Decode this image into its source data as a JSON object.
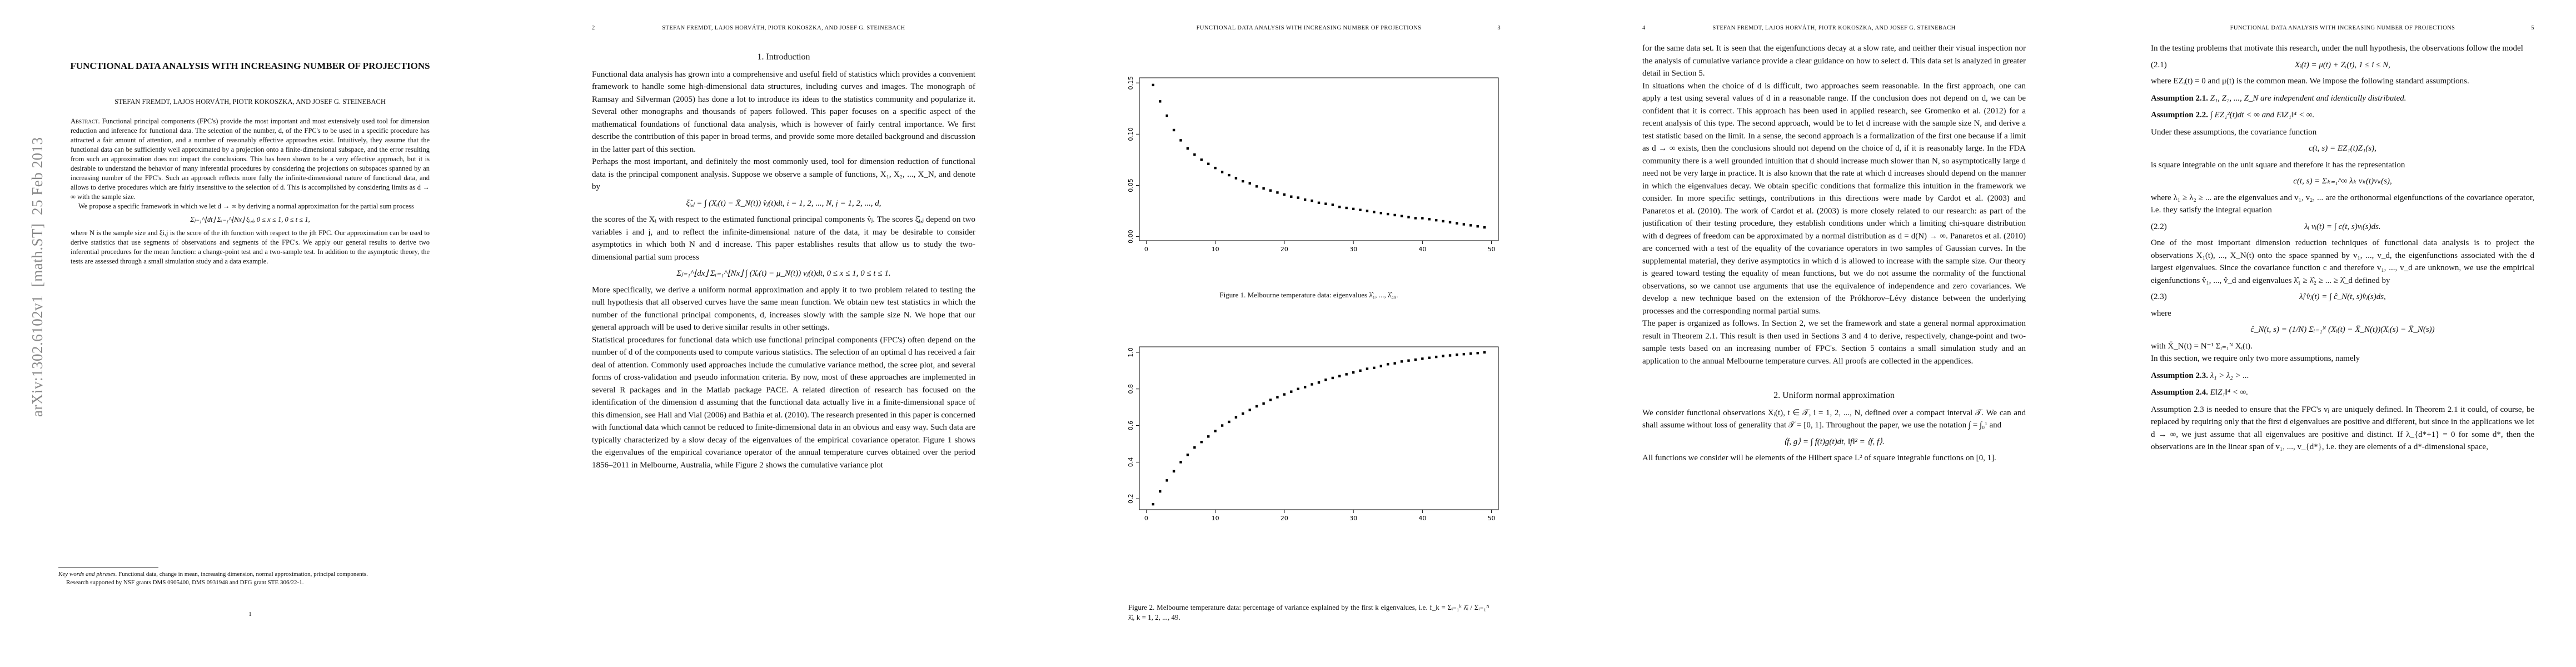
{
  "sidebar": "arXiv:1302.6102v1  [math.ST]  25 Feb 2013",
  "pages": [
    {
      "title": "FUNCTIONAL DATA ANALYSIS WITH INCREASING NUMBER OF PROJECTIONS",
      "authors": "STEFAN FREMDT, LAJOS HORVÁTH, PIOTR KOKOSZKA, AND JOSEF G. STEINEBACH",
      "abstract_label": "Abstract.",
      "abstract": "Functional principal components (FPC's) provide the most important and most extensively used tool for dimension reduction and inference for functional data. The selection of the number, d, of the FPC's to be used in a specific procedure has attracted a fair amount of attention, and a number of reasonably effective approaches exist. Intuitively, they assume that the functional data can be sufficiently well approximated by a projection onto a finite-dimensional subspace, and the error resulting from such an approximation does not impact the conclusions. This has been shown to be a very effective approach, but it is desirable to understand the behavior of many inferential procedures by considering the projections on subspaces spanned by an increasing number of the FPC's. Such an approach reflects more fully the infinite-dimensional nature of functional data, and allows to derive procedures which are fairly insensitive to the selection of d. This is accomplished by considering limits as d → ∞ with the sample size.",
      "abstract_2": "We propose a specific framework in which we let d → ∞ by deriving a normal approximation for the partial sum process",
      "equation": "Σⱼ₌₁^⌊dt⌋ Σᵢ₌₁^⌊Nx⌋ ξᵢ,ⱼ,    0 ≤ x ≤ 1,   0 ≤ t ≤ 1,",
      "abstract_3": "where N is the sample size and ξi,j is the score of the ith function with respect to the jth FPC. Our approximation can be used to derive statistics that use segments of observations and segments of the FPC's. We apply our general results to derive two inferential procedures for the mean function: a change-point test and a two-sample test. In addition to the asymptotic theory, the tests are assessed through a small simulation study and a data example.",
      "keywords_label": "Key words and phrases.",
      "keywords": "Functional data, change in mean, increasing dimension, normal approximation, principal components.",
      "support": "Research supported by NSF grants DMS 0905400, DMS 0931948 and DFG grant STE 306/22-1.",
      "page_number": "1"
    },
    {
      "page_number": "2",
      "running_head": "STEFAN FREMDT, LAJOS HORVÁTH, PIOTR KOKOSZKA, AND JOSEF G. STEINEBACH",
      "heading": "1. Introduction",
      "paragraphs": [
        "Functional data analysis has grown into a comprehensive and useful field of statistics which provides a convenient framework to handle some high-dimensional data structures, including curves and images. The monograph of Ramsay and Silverman (2005) has done a lot to introduce its ideas to the statistics community and popularize it. Several other monographs and thousands of papers followed. This paper focuses on a specific aspect of the mathematical foundations of functional data analysis, which is however of fairly central importance. We first describe the contribution of this paper in broad terms, and provide some more detailed background and discussion in the latter part of this section.",
        "Perhaps the most important, and definitely the most commonly used, tool for dimension reduction of functional data is the principal component analysis. Suppose we observe a sample of functions, X₁, X₂, ..., X_N, and denote by",
        "the scores of the Xᵢ with respect to the estimated functional principal components v̂ⱼ. The scores ξ̂ᵢ,ⱼ depend on two variables i and j, and to reflect the infinite-dimensional nature of the data, it may be desirable to consider asymptotics in which both N and d increase. This paper establishes results that allow us to study the two-dimensional partial sum process",
        "More specifically, we derive a uniform normal approximation and apply it to two problem related to testing the null hypothesis that all observed curves have the same mean function. We obtain new test statistics in which the number of the functional principal components, d, increases slowly with the sample size N. We hope that our general approach will be used to derive similar results in other settings.",
        "Statistical procedures for functional data which use functional principal components (FPC's) often depend on the number of d of the components used to compute various statistics. The selection of an optimal d has received a fair deal of attention. Commonly used approaches include the cumulative variance method, the scree plot, and several forms of cross-validation and pseudo information criteria. By now, most of these approaches are implemented in several R packages and in the Matlab package PACE. A related direction of research has focused on the identification of the dimension d assuming that the functional data actually live in a finite-dimensional space of this dimension, see Hall and Vial (2006) and Bathia et al. (2010). The research presented in this paper is concerned with functional data which cannot be reduced to finite-dimensional data in an obvious and easy way. Such data are typically characterized by a slow decay of the eigenvalues of the empirical covariance operator. Figure 1 shows the eigenvalues of the empirical covariance operator of the annual temperature curves obtained over the period 1856–2011 in Melbourne, Australia, while Figure 2 shows the cumulative variance plot"
      ],
      "equations": [
        "ξ̂ᵢ,ⱼ = ∫ (Xᵢ(t) − X̄_N(t)) v̂ⱼ(t)dt,    i = 1, 2, ..., N,    j = 1, 2, ..., d,",
        "Σⱼ₌₁^⌊dx⌋ Σᵢ₌₁^⌊Nx⌋ ∫ (Xᵢ(t) − μ_N(t)) vⱼ(t)dt,    0 ≤ x ≤ 1,    0 ≤ t ≤ 1."
      ]
    },
    {
      "running_head": "FUNCTIONAL DATA ANALYSIS WITH INCREASING NUMBER OF PROJECTIONS",
      "page_number": "3",
      "figures": [
        {
          "type": "scatter",
          "caption": "Figure 1. Melbourne temperature data: eigenvalues λ̂₁, ..., λ̂₄₉.",
          "color": "#000000",
          "x": [
            1,
            2,
            3,
            4,
            5,
            6,
            7,
            8,
            9,
            10,
            11,
            12,
            13,
            14,
            15,
            16,
            17,
            18,
            19,
            20,
            21,
            22,
            23,
            24,
            25,
            26,
            27,
            28,
            29,
            30,
            31,
            32,
            33,
            34,
            35,
            36,
            37,
            38,
            39,
            40,
            41,
            42,
            43,
            44,
            45,
            46,
            47,
            48,
            49
          ],
          "values": [
            0.148,
            0.132,
            0.118,
            0.104,
            0.094,
            0.086,
            0.08,
            0.075,
            0.071,
            0.067,
            0.063,
            0.06,
            0.057,
            0.054,
            0.052,
            0.049,
            0.047,
            0.045,
            0.043,
            0.041,
            0.039,
            0.038,
            0.036,
            0.035,
            0.033,
            0.032,
            0.031,
            0.029,
            0.028,
            0.027,
            0.026,
            0.025,
            0.024,
            0.023,
            0.022,
            0.021,
            0.02,
            0.019,
            0.018,
            0.018,
            0.017,
            0.016,
            0.015,
            0.014,
            0.013,
            0.012,
            0.011,
            0.01,
            0.009
          ],
          "xlim": [
            -1,
            51
          ],
          "ylim": [
            -0.004,
            0.155
          ],
          "xticks": [
            0,
            10,
            20,
            30,
            40,
            50
          ],
          "yticks": [
            {
              "value": 0,
              "label": "0.00"
            },
            {
              "value": 0.05,
              "label": "0.05"
            },
            {
              "value": 0.1,
              "label": "0.10"
            },
            {
              "value": 0.15,
              "label": "0.15"
            }
          ]
        },
        {
          "type": "scatter",
          "caption": "Figure 2. Melbourne temperature data: percentage of variance explained by the first k eigenvalues, i.e. f_k = Σᵢ₌₁ᵏ λ̂ᵢ / Σᵢ₌₁ᴺ λ̂ᵢ, k = 1, 2, ..., 49.",
          "color": "#000000",
          "x": [
            1,
            2,
            3,
            4,
            5,
            6,
            7,
            8,
            9,
            10,
            11,
            12,
            13,
            14,
            15,
            16,
            17,
            18,
            19,
            20,
            21,
            22,
            23,
            24,
            25,
            26,
            27,
            28,
            29,
            30,
            31,
            32,
            33,
            34,
            35,
            36,
            37,
            38,
            39,
            40,
            41,
            42,
            43,
            44,
            45,
            46,
            47,
            48,
            49
          ],
          "values": [
            0.17,
            0.24,
            0.3,
            0.35,
            0.4,
            0.44,
            0.48,
            0.51,
            0.54,
            0.57,
            0.6,
            0.62,
            0.645,
            0.665,
            0.685,
            0.705,
            0.72,
            0.74,
            0.755,
            0.77,
            0.785,
            0.8,
            0.81,
            0.825,
            0.835,
            0.85,
            0.86,
            0.87,
            0.88,
            0.89,
            0.9,
            0.91,
            0.915,
            0.925,
            0.935,
            0.94,
            0.95,
            0.955,
            0.96,
            0.965,
            0.97,
            0.975,
            0.98,
            0.983,
            0.987,
            0.99,
            0.993,
            0.996,
            1.0
          ],
          "xlim": [
            -1,
            51
          ],
          "ylim": [
            0.14,
            1.03
          ],
          "xticks": [
            0,
            10,
            20,
            30,
            40,
            50
          ],
          "yticks": [
            0.2,
            0.4,
            0.6,
            0.8,
            {
              "value": 1,
              "label": "1.0"
            }
          ]
        }
      ]
    },
    {
      "page_number": "4",
      "running_head": "STEFAN FREMDT, LAJOS HORVÁTH, PIOTR KOKOSZKA, AND JOSEF G. STEINEBACH",
      "paragraphs": [
        "for the same data set. It is seen that the eigenfunctions decay at a slow rate, and neither their visual inspection nor the analysis of cumulative variance provide a clear guidance on how to select d. This data set is analyzed in greater detail in Section 5.",
        "In situations when the choice of d is difficult, two approaches seem reasonable. In the first approach, one can apply a test using several values of d in a reasonable range. If the conclusion does not depend on d, we can be confident that it is correct. This approach has been used in applied research, see Gromenko et al. (2012) for a recent analysis of this type. The second approach, would be to let d increase with the sample size N, and derive a test statistic based on the limit. In a sense, the second approach is a formalization of the first one because if a limit as d → ∞ exists, then the conclusions should not depend on the choice of d, if it is reasonably large. In the FDA community there is a well grounded intuition that d should increase much slower than N, so asymptotically large d need not be very large in practice. It is also known that the rate at which d increases should depend on the manner in which the eigenvalues decay. We obtain specific conditions that formalize this intuition in the framework we consider. In more specific settings, contributions in this directions were made by Cardot et al. (2003) and Panaretos et al. (2010). The work of Cardot et al. (2003) is more closely related to our research: as part of the justification of their testing procedure, they establish conditions under which a limiting chi-square distribution with d degrees of freedom can be approximated by a normal distribution as d = d(N) → ∞. Panaretos et al. (2010) are concerned with a test of the equality of the covariance operators in two samples of Gaussian curves. In the supplemental material, they derive asymptotics in which d is allowed to increase with the sample size. Our theory is geared toward testing the equality of mean functions, but we do not assume the normality of the functional observations, so we cannot use arguments that use the equivalence of independence and zero covariances. We develop a new technique based on the extension of the Prókhorov–Lévy distance between the underlying processes and the corresponding normal partial sums.",
        "The paper is organized as follows. In Section 2, we set the framework and state a general normal approximation result in Theorem 2.1. This result is then used in Sections 3 and 4 to derive, respectively, change-point and two-sample tests based on an increasing number of FPC's. Section 5 contains a small simulation study and an application to the annual Melbourne temperature curves. All proofs are collected in the appendices.",
        "We consider functional observations Xᵢ(t), t ∈ 𝒯, i = 1, 2, ..., N, defined over a compact interval 𝒯. We can and shall assume without loss of generality that 𝒯 = [0, 1]. Throughout the paper, we use the notation ∫ = ∫₀¹ and",
        "All functions we consider will be elements of the Hilbert space L² of square integrable functions on [0, 1]."
      ],
      "heading": "2. Uniform normal approximation",
      "equation": "⟨f, g⟩ = ∫ f(t)g(t)dt,    ‖f‖² = ⟨f, f⟩."
    },
    {
      "running_head": "FUNCTIONAL DATA ANALYSIS WITH INCREASING NUMBER OF PROJECTIONS",
      "page_number": "5",
      "paragraphs": [
        "In the testing problems that motivate this research, under the null hypothesis, the observations follow the model",
        "where EZᵢ(t) = 0 and μ(t) is the common mean. We impose the following standard assumptions.",
        "Under these assumptions, the covariance function",
        "is square integrable on the unit square and therefore it has the representation",
        "where λ₁ ≥ λ₂ ≥ ... are the eigenvalues and v₁, v₂, ... are the orthonormal eigenfunctions of the covariance operator, i.e. they satisfy the integral equation",
        "One of the most important dimension reduction techniques of functional data analysis is to project the observations X₁(t), ..., X_N(t) onto the space spanned by v₁, ..., v_d, the eigenfunctions associated with the d largest eigenvalues. Since the covariance function c and therefore v₁, ..., v_d are unknown, we use the empirical eigenfunctions v̂₁, ..., v̂_d and eigenvalues λ̂₁ ≥ λ̂₂ ≥ ... ≥ λ̂_d defined by",
        "where",
        "with X̄_N(t) = N⁻¹ Σᵢ₌₁ᴺ Xᵢ(t).",
        "In this section, we require only two more assumptions, namely",
        "Assumption 2.3 is needed to ensure that the FPC's vⱼ are uniquely defined. In Theorem 2.1 it could, of course, be replaced by requiring only that the first d eigenvalues are positive and different, but since in the applications we let d → ∞, we just assume that all eigenvalues are positive and distinct. If λ_{d*+1} = 0 for some d*, then the observations are in the linear span of v₁, ..., v_{d*}, i.e. they are elements of a d*-dimensional space,"
      ],
      "equations": [
        {
          "number": "(2.1)",
          "expr": "Xᵢ(t) = μ(t) + Zᵢ(t),    1 ≤ i ≤ N,"
        },
        {
          "expr": "c(t, s) = EZ₁(t)Z₁(s),"
        },
        {
          "expr": "c(t, s) = Σₖ₌₁^∞ λₖ vₖ(t)vₖ(s),"
        },
        {
          "number": "(2.2)",
          "expr": "λᵢ vᵢ(t) = ∫ c(t, s)vᵢ(s)ds."
        },
        {
          "number": "(2.3)",
          "expr": "λ̂ⱼ v̂ⱼ(t) = ∫ ĉ_N(t, s)v̂ⱼ(s)ds,"
        },
        {
          "expr": "ĉ_N(t, s) = (1/N) Σᵢ₌₁ᴺ (Xᵢ(t) − X̄_N(t))(Xᵢ(s) − X̄_N(s))"
        }
      ],
      "assumptions": [
        {
          "label": "Assumption 2.1.",
          "text": "Z₁, Z₂, ..., Z_N are independent and identically distributed."
        },
        {
          "label": "Assumption 2.2.",
          "text": "∫ EZ₁²(t)dt < ∞ and E‖Z₁‖⁴ < ∞."
        },
        {
          "label": "Assumption 2.3.",
          "text": "λ₁ > λ₂ > ..."
        },
        {
          "label": "Assumption 2.4.",
          "text": "E‖Z₁‖⁴ < ∞."
        }
      ]
    }
  ]
}
